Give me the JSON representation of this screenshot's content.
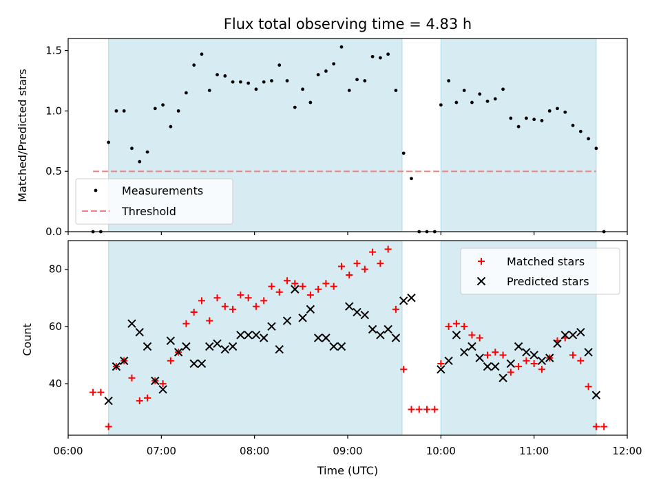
{
  "chart_data": {
    "type": "scatter",
    "title": "Flux total observing time = 4.83 h",
    "xlabel": "Time (UTC)",
    "x_ticks": [
      "06:00",
      "07:00",
      "08:00",
      "09:00",
      "10:00",
      "11:00",
      "12:00"
    ],
    "xlim": [
      "06:00",
      "12:00"
    ],
    "shaded_intervals": [
      [
        "06:26",
        "09:35"
      ],
      [
        "10:00",
        "11:40"
      ]
    ],
    "shade_color": "#add8e6",
    "top_panel": {
      "ylabel": "Matched/Predicted stars",
      "ylim": [
        0,
        1.6
      ],
      "y_ticks": [
        "0.0",
        "0.5",
        "1.0",
        "1.5"
      ],
      "legend_position": "lower-left",
      "threshold": {
        "name": "Threshold",
        "value": 0.5,
        "x_range": [
          "06:16",
          "11:40"
        ],
        "color": "#f08080"
      },
      "measurements": {
        "name": "Measurements",
        "color": "#000000",
        "points": [
          [
            "06:16",
            0.0
          ],
          [
            "06:21",
            0.0
          ],
          [
            "06:26",
            0.74
          ],
          [
            "06:31",
            1.0
          ],
          [
            "06:36",
            1.0
          ],
          [
            "06:41",
            0.69
          ],
          [
            "06:46",
            0.58
          ],
          [
            "06:51",
            0.66
          ],
          [
            "06:56",
            1.02
          ],
          [
            "07:01",
            1.05
          ],
          [
            "07:06",
            0.87
          ],
          [
            "07:11",
            1.0
          ],
          [
            "07:16",
            1.15
          ],
          [
            "07:21",
            1.38
          ],
          [
            "07:26",
            1.47
          ],
          [
            "07:31",
            1.17
          ],
          [
            "07:36",
            1.3
          ],
          [
            "07:41",
            1.29
          ],
          [
            "07:46",
            1.24
          ],
          [
            "07:51",
            1.24
          ],
          [
            "07:56",
            1.23
          ],
          [
            "08:01",
            1.18
          ],
          [
            "08:06",
            1.24
          ],
          [
            "08:11",
            1.25
          ],
          [
            "08:16",
            1.38
          ],
          [
            "08:21",
            1.25
          ],
          [
            "08:26",
            1.03
          ],
          [
            "08:31",
            1.18
          ],
          [
            "08:36",
            1.07
          ],
          [
            "08:41",
            1.3
          ],
          [
            "08:46",
            1.33
          ],
          [
            "08:51",
            1.39
          ],
          [
            "08:56",
            1.53
          ],
          [
            "09:01",
            1.17
          ],
          [
            "09:06",
            1.26
          ],
          [
            "09:11",
            1.25
          ],
          [
            "09:16",
            1.45
          ],
          [
            "09:21",
            1.44
          ],
          [
            "09:26",
            1.47
          ],
          [
            "09:31",
            1.17
          ],
          [
            "09:36",
            0.65
          ],
          [
            "09:41",
            0.44
          ],
          [
            "09:46",
            0.0
          ],
          [
            "09:51",
            0.0
          ],
          [
            "09:56",
            0.0
          ],
          [
            "10:00",
            1.05
          ],
          [
            "10:05",
            1.25
          ],
          [
            "10:10",
            1.07
          ],
          [
            "10:15",
            1.17
          ],
          [
            "10:20",
            1.07
          ],
          [
            "10:25",
            1.14
          ],
          [
            "10:30",
            1.08
          ],
          [
            "10:35",
            1.1
          ],
          [
            "10:40",
            1.18
          ],
          [
            "10:45",
            0.94
          ],
          [
            "10:50",
            0.87
          ],
          [
            "10:55",
            0.94
          ],
          [
            "11:00",
            0.93
          ],
          [
            "11:05",
            0.92
          ],
          [
            "11:10",
            1.0
          ],
          [
            "11:15",
            1.02
          ],
          [
            "11:20",
            0.99
          ],
          [
            "11:25",
            0.88
          ],
          [
            "11:30",
            0.83
          ],
          [
            "11:35",
            0.77
          ],
          [
            "11:40",
            0.69
          ],
          [
            "11:45",
            0.0
          ]
        ]
      }
    },
    "bottom_panel": {
      "ylabel": "Count",
      "ylim": [
        22,
        90
      ],
      "y_ticks": [
        "40",
        "60",
        "80"
      ],
      "legend_position": "upper-right",
      "series": [
        {
          "name": "Matched stars",
          "marker": "plus",
          "color": "#ff0000",
          "points": [
            [
              "06:16",
              37
            ],
            [
              "06:21",
              37
            ],
            [
              "06:26",
              25
            ],
            [
              "06:31",
              46
            ],
            [
              "06:36",
              48
            ],
            [
              "06:41",
              42
            ],
            [
              "06:46",
              34
            ],
            [
              "06:51",
              35
            ],
            [
              "06:56",
              41
            ],
            [
              "07:01",
              40
            ],
            [
              "07:06",
              48
            ],
            [
              "07:11",
              51
            ],
            [
              "07:16",
              61
            ],
            [
              "07:21",
              65
            ],
            [
              "07:26",
              69
            ],
            [
              "07:31",
              62
            ],
            [
              "07:36",
              70
            ],
            [
              "07:41",
              67
            ],
            [
              "07:46",
              66
            ],
            [
              "07:51",
              71
            ],
            [
              "07:56",
              70
            ],
            [
              "08:01",
              67
            ],
            [
              "08:06",
              69
            ],
            [
              "08:11",
              74
            ],
            [
              "08:16",
              72
            ],
            [
              "08:21",
              76
            ],
            [
              "08:26",
              75
            ],
            [
              "08:31",
              74
            ],
            [
              "08:36",
              71
            ],
            [
              "08:41",
              73
            ],
            [
              "08:46",
              75
            ],
            [
              "08:51",
              74
            ],
            [
              "08:56",
              81
            ],
            [
              "09:01",
              78
            ],
            [
              "09:06",
              82
            ],
            [
              "09:11",
              80
            ],
            [
              "09:16",
              86
            ],
            [
              "09:21",
              82
            ],
            [
              "09:26",
              87
            ],
            [
              "09:31",
              66
            ],
            [
              "09:36",
              45
            ],
            [
              "09:41",
              31
            ],
            [
              "09:46",
              31
            ],
            [
              "09:51",
              31
            ],
            [
              "09:56",
              31
            ],
            [
              "10:00",
              47
            ],
            [
              "10:05",
              60
            ],
            [
              "10:10",
              61
            ],
            [
              "10:15",
              60
            ],
            [
              "10:20",
              57
            ],
            [
              "10:25",
              56
            ],
            [
              "10:30",
              50
            ],
            [
              "10:35",
              51
            ],
            [
              "10:40",
              50
            ],
            [
              "10:45",
              44
            ],
            [
              "10:50",
              46
            ],
            [
              "10:55",
              48
            ],
            [
              "11:00",
              47
            ],
            [
              "11:05",
              45
            ],
            [
              "11:10",
              49
            ],
            [
              "11:15",
              55
            ],
            [
              "11:20",
              56
            ],
            [
              "11:25",
              50
            ],
            [
              "11:30",
              48
            ],
            [
              "11:35",
              39
            ],
            [
              "11:40",
              25
            ],
            [
              "11:45",
              25
            ]
          ]
        },
        {
          "name": "Predicted stars",
          "marker": "x",
          "color": "#000000",
          "points": [
            [
              "06:26",
              34
            ],
            [
              "06:31",
              46
            ],
            [
              "06:36",
              48
            ],
            [
              "06:41",
              61
            ],
            [
              "06:46",
              58
            ],
            [
              "06:51",
              53
            ],
            [
              "06:56",
              41
            ],
            [
              "07:01",
              38
            ],
            [
              "07:06",
              55
            ],
            [
              "07:11",
              51
            ],
            [
              "07:16",
              53
            ],
            [
              "07:21",
              47
            ],
            [
              "07:26",
              47
            ],
            [
              "07:31",
              53
            ],
            [
              "07:36",
              54
            ],
            [
              "07:41",
              52
            ],
            [
              "07:46",
              53
            ],
            [
              "07:51",
              57
            ],
            [
              "07:56",
              57
            ],
            [
              "08:01",
              57
            ],
            [
              "08:06",
              56
            ],
            [
              "08:11",
              60
            ],
            [
              "08:16",
              52
            ],
            [
              "08:21",
              62
            ],
            [
              "08:26",
              73
            ],
            [
              "08:31",
              63
            ],
            [
              "08:36",
              66
            ],
            [
              "08:41",
              56
            ],
            [
              "08:46",
              56
            ],
            [
              "08:51",
              53
            ],
            [
              "08:56",
              53
            ],
            [
              "09:01",
              67
            ],
            [
              "09:06",
              65
            ],
            [
              "09:11",
              64
            ],
            [
              "09:16",
              59
            ],
            [
              "09:21",
              57
            ],
            [
              "09:26",
              59
            ],
            [
              "09:31",
              56
            ],
            [
              "09:36",
              69
            ],
            [
              "09:41",
              70
            ],
            [
              "10:00",
              45
            ],
            [
              "10:05",
              48
            ],
            [
              "10:10",
              57
            ],
            [
              "10:15",
              51
            ],
            [
              "10:20",
              53
            ],
            [
              "10:25",
              49
            ],
            [
              "10:30",
              46
            ],
            [
              "10:35",
              46
            ],
            [
              "10:40",
              42
            ],
            [
              "10:45",
              47
            ],
            [
              "10:50",
              53
            ],
            [
              "10:55",
              51
            ],
            [
              "11:00",
              50
            ],
            [
              "11:05",
              48
            ],
            [
              "11:10",
              49
            ],
            [
              "11:15",
              54
            ],
            [
              "11:20",
              57
            ],
            [
              "11:25",
              57
            ],
            [
              "11:30",
              58
            ],
            [
              "11:35",
              51
            ],
            [
              "11:40",
              36
            ]
          ]
        }
      ]
    }
  }
}
